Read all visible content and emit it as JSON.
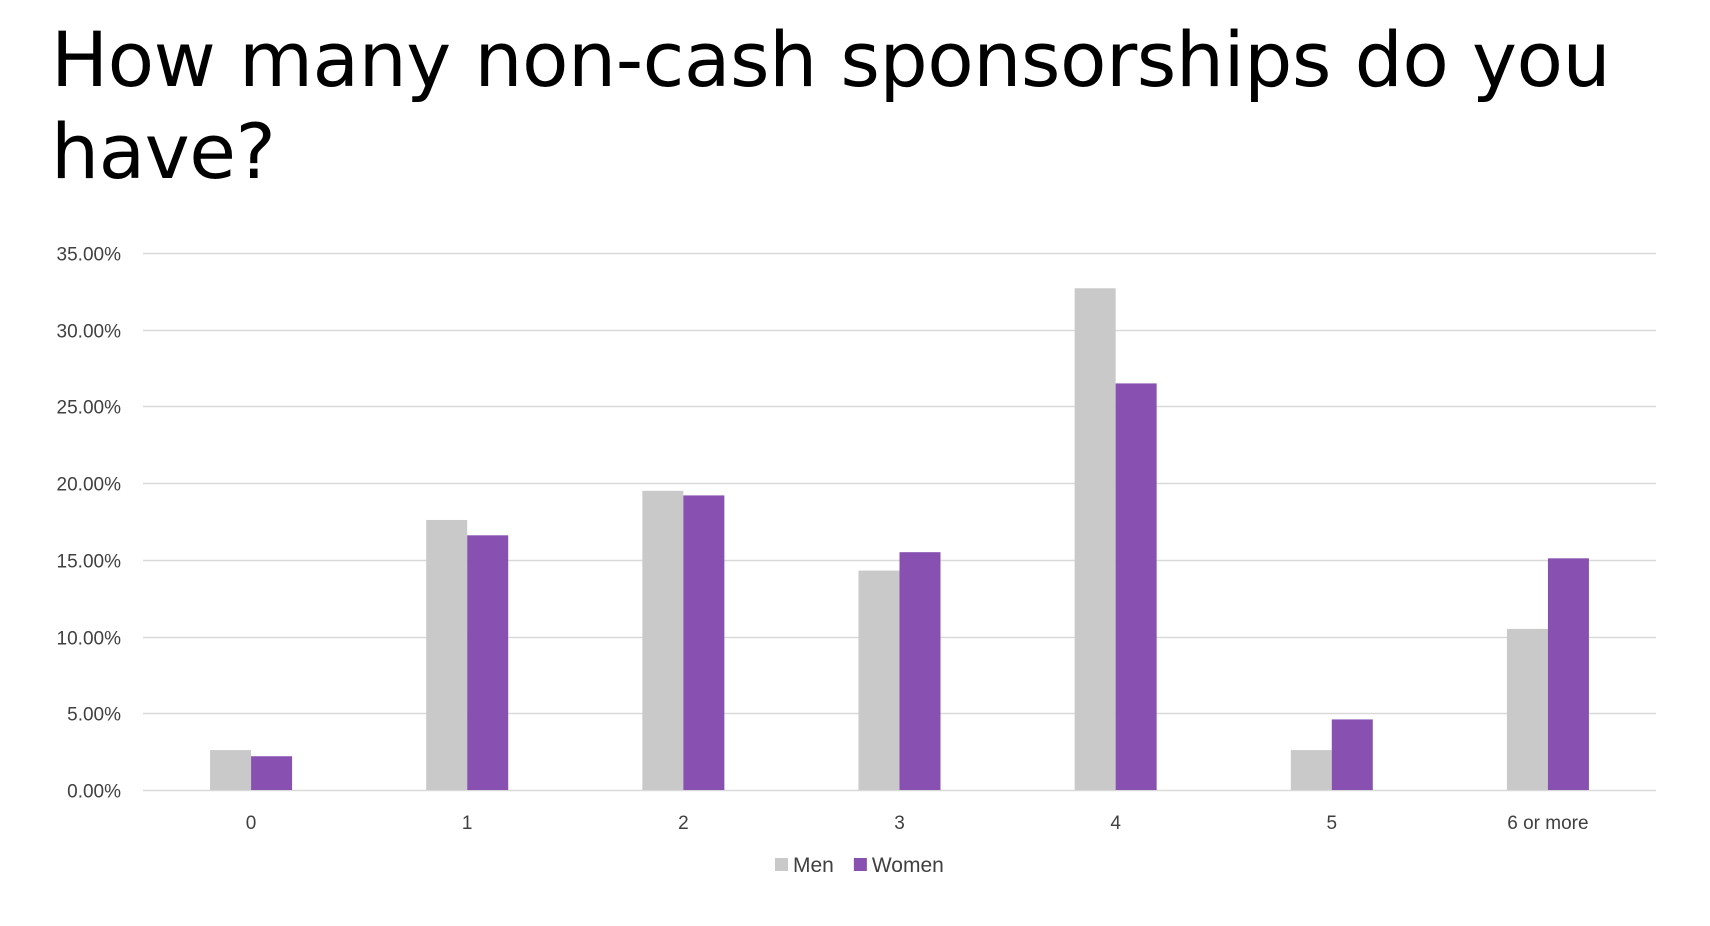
{
  "slide": {
    "title": "How many non-cash sponsorships do you have?"
  },
  "colors": {
    "men": "#c9c9c9",
    "women": "#8750b1",
    "gridline": "#d9d9d9",
    "axis_text": "#404040"
  },
  "chart_data": {
    "type": "bar",
    "title": "",
    "xlabel": "",
    "ylabel": "",
    "categories": [
      "0",
      "1",
      "2",
      "3",
      "4",
      "5",
      "6 or more"
    ],
    "series": [
      {
        "name": "Men",
        "color": "#c9c9c9",
        "values": [
          2.6,
          17.6,
          19.5,
          14.3,
          32.7,
          2.6,
          10.5
        ]
      },
      {
        "name": "Women",
        "color": "#8750b1",
        "values": [
          2.2,
          16.6,
          19.2,
          15.5,
          26.5,
          4.6,
          15.1
        ]
      }
    ],
    "ylim": [
      0,
      35
    ],
    "yticks": [
      0,
      5,
      10,
      15,
      20,
      25,
      30,
      35
    ],
    "ytick_labels": [
      "0.00%",
      "5.00%",
      "10.00%",
      "15.00%",
      "20.00%",
      "25.00%",
      "30.00%",
      "35.00%"
    ],
    "grid": true,
    "legend_position": "bottom"
  }
}
